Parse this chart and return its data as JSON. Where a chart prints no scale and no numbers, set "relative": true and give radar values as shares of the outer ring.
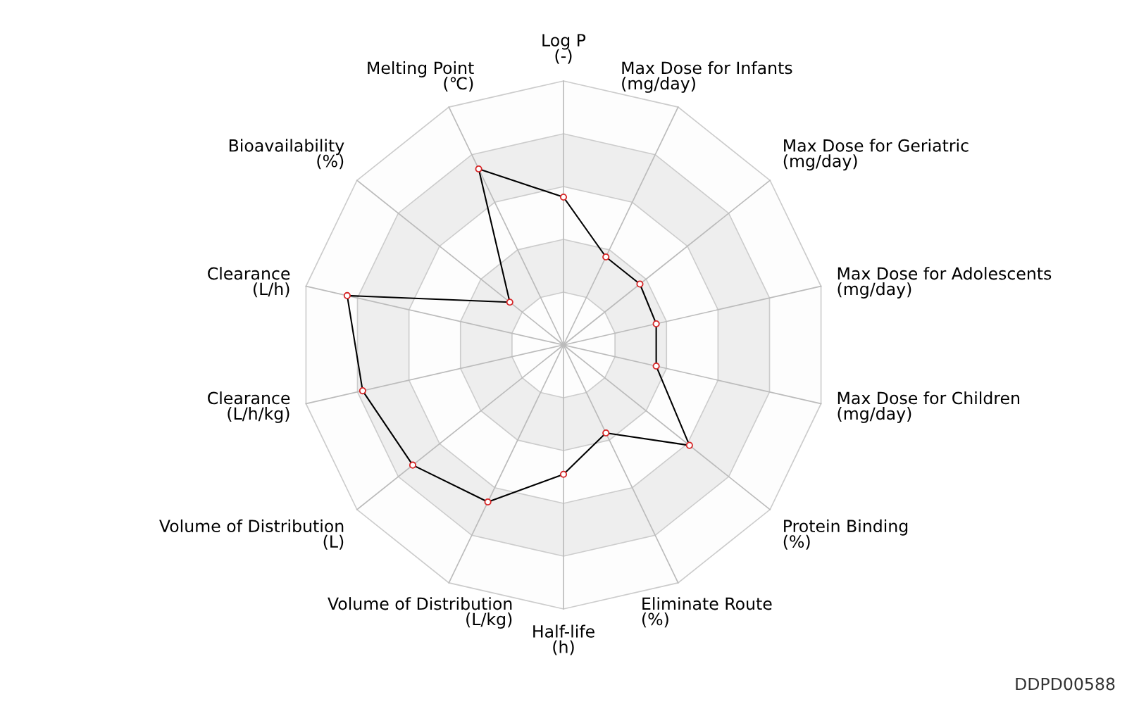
{
  "chart_data": {
    "type": "radar",
    "relative": true,
    "grid": true,
    "marker": "circle",
    "legend": false,
    "categories": [
      "Log P\n(-)",
      "Max Dose for Infants\n(mg/day)",
      "Max Dose for Geriatric\n(mg/day)",
      "Max Dose for Adolescents\n(mg/day)",
      "Max Dose for Children\n(mg/day)",
      "Protein Binding\n(%)",
      "Eliminate Route\n(%)",
      "Half-life\n(h)",
      "Volume of Distribution\n(L/kg)",
      "Volume of Distribution\n(L)",
      "Clearance\n(L/h/kg)",
      "Clearance\n(L/h)",
      "Bioavailability\n(%)",
      "Melting Point\n(℃)"
    ],
    "series": [
      {
        "color": "#000000",
        "values": [
          0.56,
          0.37,
          0.37,
          0.36,
          0.36,
          0.61,
          0.37,
          0.49,
          0.66,
          0.73,
          0.78,
          0.84,
          0.26,
          0.74
        ]
      }
    ],
    "annotations": [
      "DDPD00588"
    ]
  }
}
